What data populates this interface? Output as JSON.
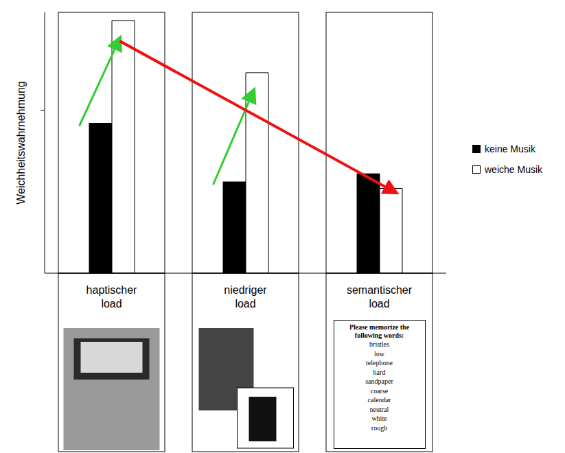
{
  "chart_data": {
    "type": "bar",
    "categories": [
      "haptischer load",
      "niedriger load",
      "semantischer load"
    ],
    "series": [
      {
        "name": "keine Musik",
        "color": "#000000",
        "values": [
          0.92,
          0.56,
          0.61
        ]
      },
      {
        "name": "weiche Musik",
        "color": "#ffffff",
        "values": [
          1.55,
          1.23,
          0.52
        ]
      }
    ],
    "ylabel": "Weichheitswahrnehmung",
    "ylim": [
      0,
      1.6
    ],
    "yticks": [
      1
    ],
    "tick_labels": "x",
    "legend": "right",
    "annotations": [
      "Please memorize the following words:",
      "bristles",
      "low",
      "telephone",
      "hard",
      "sandpaper",
      "coarse",
      "calendar",
      "neutral",
      "white",
      "rough"
    ]
  }
}
